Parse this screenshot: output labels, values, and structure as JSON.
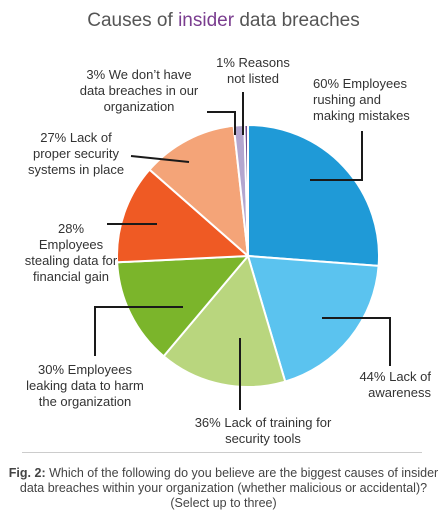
{
  "title": {
    "before": "Causes of ",
    "highlight": "insider",
    "after": " data breaches"
  },
  "caption": {
    "prefix": "Fig. 2:",
    "text": " Which of the following do you believe are the biggest causes of insider data breaches within your organization (whether malicious or accidental)? (Select up to three)"
  },
  "colors": {
    "title_highlight": "#7a3d8f",
    "leader": "#1a1a1a"
  },
  "chart_data": {
    "type": "pie",
    "slices": [
      {
        "value": 60,
        "label": "60% Employees\nrushing and\nmaking mistakes",
        "color": "#1f9ad7"
      },
      {
        "value": 44,
        "label": "44% Lack of\nawareness",
        "color": "#5bc3ef"
      },
      {
        "value": 36,
        "label": "36% Lack of training for\nsecurity tools",
        "color": "#b9d67e"
      },
      {
        "value": 30,
        "label": "30% Employees\nleaking data to harm\nthe organization",
        "color": "#7bb52b"
      },
      {
        "value": 28,
        "label": "28%\nEmployees\nstealing data for\nfinancial gain",
        "color": "#ef5a24"
      },
      {
        "value": 27,
        "label": "27% Lack of\nproper security\nsystems in place",
        "color": "#f4a478"
      },
      {
        "value": 3,
        "label": "3% We don’t have\ndata breaches in our\norganization",
        "color": "#b3a6cf"
      },
      {
        "value": 1,
        "label": "1% Reasons\nnot listed",
        "color": "#6d4a8e"
      }
    ]
  }
}
